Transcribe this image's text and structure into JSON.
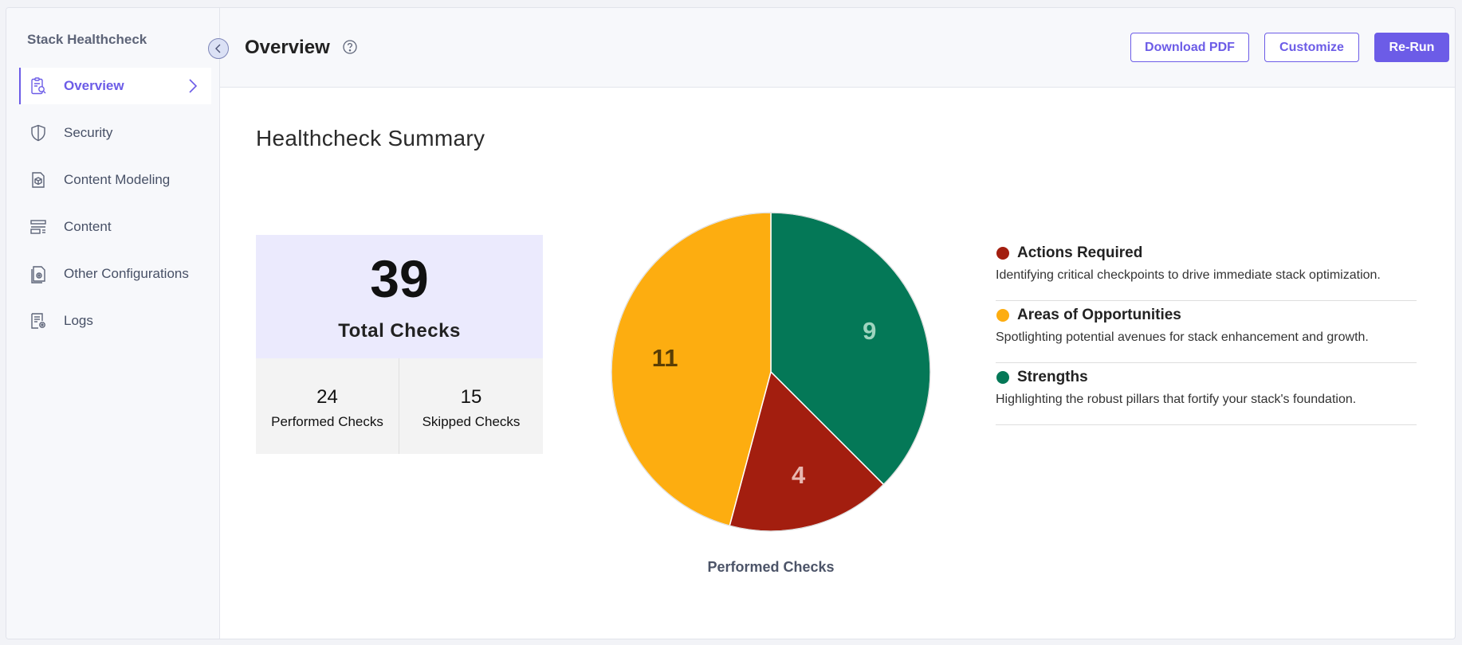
{
  "sidebar": {
    "title": "Stack Healthcheck",
    "items": [
      {
        "label": "Overview",
        "icon": "clipboard-search-icon",
        "active": true
      },
      {
        "label": "Security",
        "icon": "shield-icon"
      },
      {
        "label": "Content Modeling",
        "icon": "cube-document-icon"
      },
      {
        "label": "Content",
        "icon": "content-list-icon"
      },
      {
        "label": "Other Configurations",
        "icon": "gear-document-icon"
      },
      {
        "label": "Logs",
        "icon": "log-settings-icon"
      }
    ]
  },
  "header": {
    "title": "Overview",
    "help_icon": "question-circle-icon",
    "buttons": {
      "download": "Download PDF",
      "customize": "Customize",
      "rerun": "Re-Run"
    }
  },
  "summary": {
    "title": "Healthcheck Summary",
    "total": "39",
    "total_label": "Total Checks",
    "performed": "24",
    "performed_label": "Performed Checks",
    "skipped": "15",
    "skipped_label": "Skipped Checks"
  },
  "chart_data": {
    "type": "pie",
    "xlabel": "Performed Checks",
    "slices": [
      {
        "name": "Strengths",
        "value": 9,
        "color": "#047857",
        "label_color": "#9fd4bf"
      },
      {
        "name": "Actions Required",
        "value": 4,
        "color": "#a31e0f",
        "label_color": "#e8b7b0"
      },
      {
        "name": "Areas of Opportunities",
        "value": 11,
        "color": "#fdad10",
        "label_color": "#5a3e05"
      }
    ]
  },
  "legend": [
    {
      "title": "Actions Required",
      "desc": "Identifying critical checkpoints to drive immediate stack optimization.",
      "color": "#a31e0f"
    },
    {
      "title": "Areas of Opportunities",
      "desc": "Spotlighting potential avenues for stack enhancement and growth.",
      "color": "#fdad10"
    },
    {
      "title": "Strengths",
      "desc": "Highlighting the robust pillars that fortify your stack's foundation.",
      "color": "#047857"
    }
  ],
  "colors": {
    "accent": "#6c5ce7"
  }
}
